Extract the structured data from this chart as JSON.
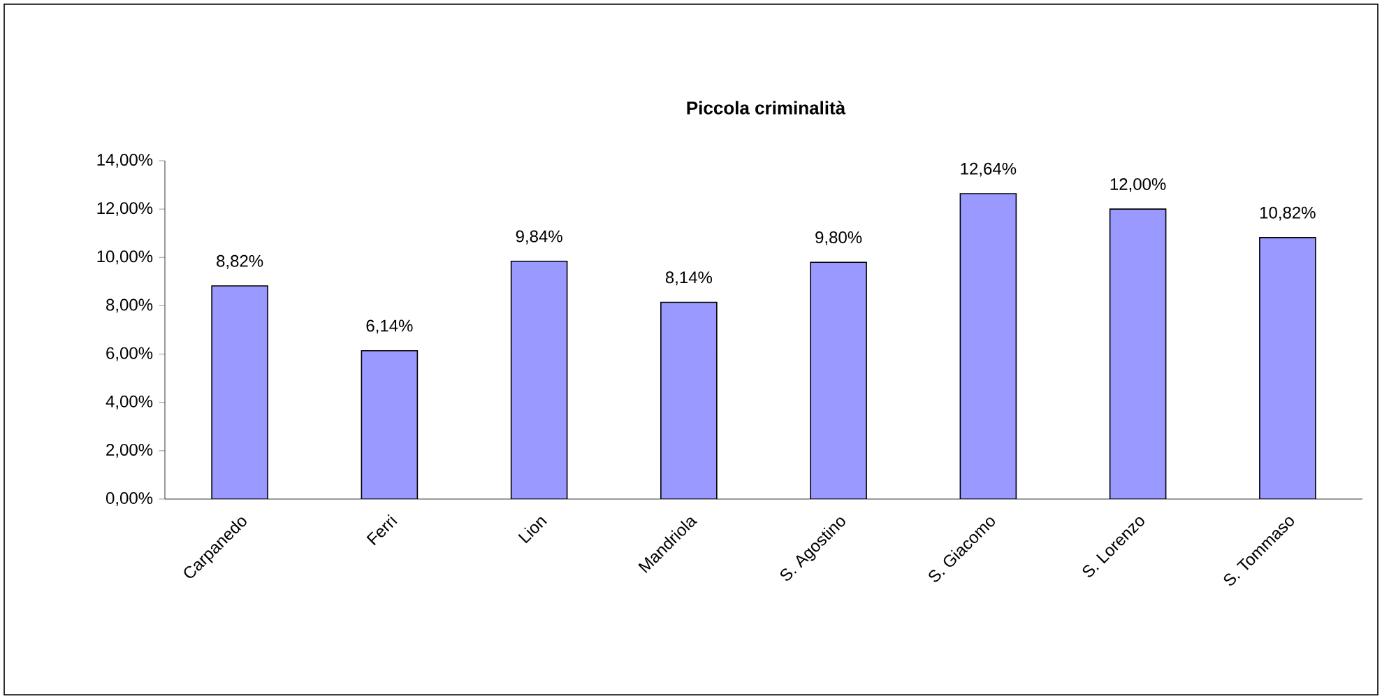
{
  "chart_data": {
    "type": "bar",
    "title": "Piccola criminalità",
    "categories": [
      "Carpanedo",
      "Ferri",
      "Lion",
      "Mandriola",
      "S. Agostino",
      "S. Giacomo",
      "S. Lorenzo",
      "S. Tommaso"
    ],
    "values": [
      8.82,
      6.14,
      9.84,
      8.14,
      9.8,
      12.64,
      12.0,
      10.82
    ],
    "value_labels": [
      "8,82%",
      "6,14%",
      "9,84%",
      "8,14%",
      "9,80%",
      "12,64%",
      "12,00%",
      "10,82%"
    ],
    "color": "#9999ff",
    "ylim": [
      0,
      14
    ],
    "yticks": [
      {
        "value": 0,
        "label": "0,00%"
      },
      {
        "value": 2,
        "label": "2,00%"
      },
      {
        "value": 4,
        "label": "4,00%"
      },
      {
        "value": 6,
        "label": "6,00%"
      },
      {
        "value": 8,
        "label": "8,00%"
      },
      {
        "value": 10,
        "label": "10,00%"
      },
      {
        "value": 12,
        "label": "12,00%"
      },
      {
        "value": 14,
        "label": "14,00%"
      }
    ],
    "grid": false
  }
}
